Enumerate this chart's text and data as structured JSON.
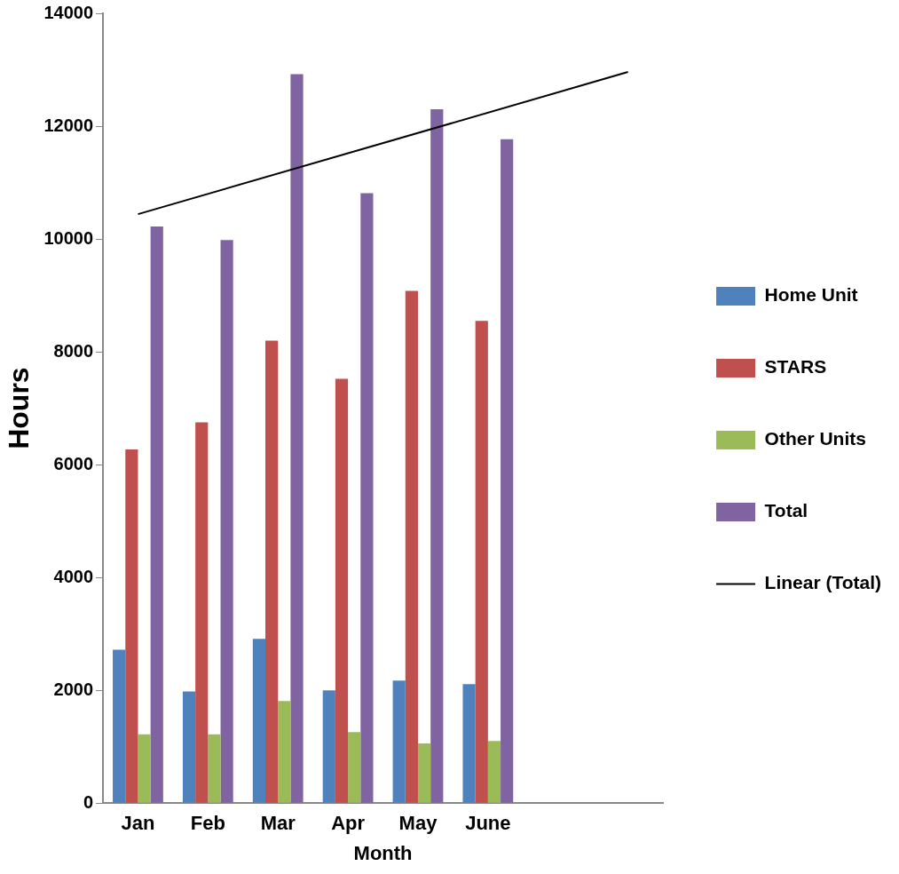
{
  "chart_data": {
    "type": "bar",
    "xlabel": "Month",
    "ylabel": "Hours",
    "categories": [
      "Jan",
      "Feb",
      "Mar",
      "Apr",
      "May",
      "June",
      null,
      null
    ],
    "series": [
      {
        "name": "Home Unit",
        "color": "#4f81bd",
        "values": [
          2720,
          1980,
          2910,
          2000,
          2170,
          2110,
          null,
          null
        ]
      },
      {
        "name": "STARS",
        "color": "#c0504d",
        "values": [
          6270,
          6750,
          8200,
          7520,
          9080,
          8550,
          null,
          null
        ]
      },
      {
        "name": "Other Units",
        "color": "#9bbb59",
        "values": [
          1220,
          1220,
          1810,
          1260,
          1060,
          1100,
          null,
          null
        ]
      },
      {
        "name": "Total",
        "color": "#8064a2",
        "values": [
          10220,
          9980,
          12920,
          10810,
          12300,
          11770,
          null,
          null
        ]
      },
      {
        "name": "Linear (Total)",
        "type": "line",
        "color": "#000000",
        "values": [
          10440,
          null,
          null,
          null,
          null,
          null,
          null,
          12960
        ]
      }
    ],
    "ylim": [
      0,
      14000
    ],
    "yticks": [
      0,
      2000,
      4000,
      6000,
      8000,
      10000,
      12000,
      14000
    ],
    "grid": false,
    "legend": "right",
    "marker": "none"
  }
}
